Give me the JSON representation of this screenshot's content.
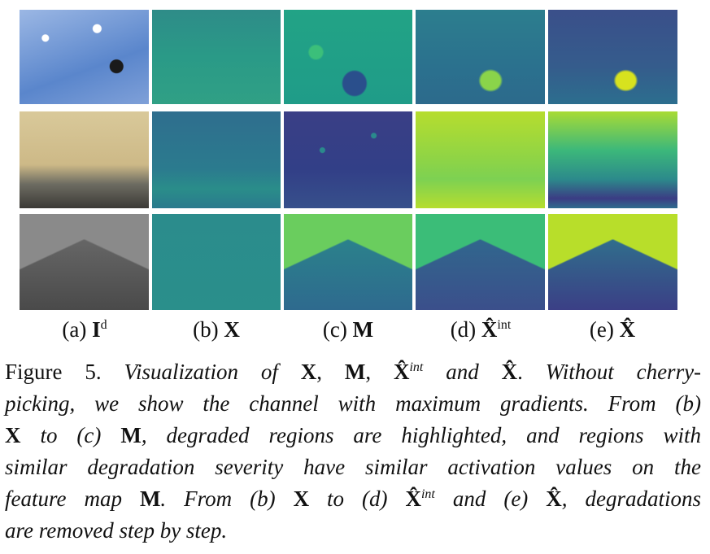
{
  "figure": {
    "columns": [
      {
        "prefix": "(a)",
        "symbol": "I",
        "sup": "d"
      },
      {
        "prefix": "(b)",
        "symbol": "X"
      },
      {
        "prefix": "(c)",
        "symbol": "M"
      },
      {
        "prefix": "(d)",
        "symbol": "X̂",
        "sup": "int"
      },
      {
        "prefix": "(e)",
        "symbol": "X̂"
      }
    ],
    "caption": {
      "lines": [
        [
          "Figure 5. ",
          "Visualization of ",
          "X",
          ", ",
          "M",
          ", ",
          "X̂",
          "int",
          " and ",
          "X̂",
          ". ",
          "Without cherry-"
        ],
        [
          "picking, we show the channel with maximum gradients. From (b)"
        ],
        [
          "X",
          " to (c) ",
          "M",
          ", degraded regions are highlighted, and regions with"
        ],
        [
          "similar degradation severity have similar activation values on the"
        ],
        [
          "feature map ",
          "M",
          ". From (b) ",
          "X",
          " to (d) ",
          "X̂",
          "int",
          " and (e) ",
          "X̂",
          ", degradations"
        ],
        [
          "are removed step by step."
        ]
      ]
    }
  }
}
